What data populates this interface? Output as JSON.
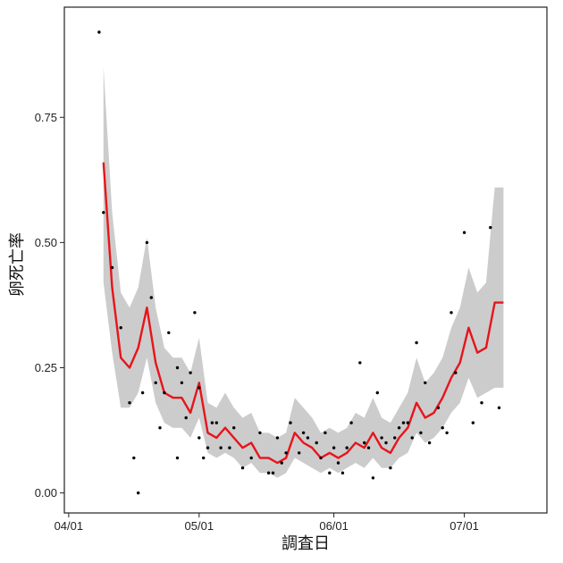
{
  "chart_data": {
    "type": "line",
    "title": "",
    "xlabel": "調査日",
    "ylabel": "卵死亡率",
    "x_axis": {
      "kind": "date",
      "ticks": [
        "2000-04-01",
        "2000-05-01",
        "2000-06-01",
        "2000-07-01"
      ],
      "tick_labels": [
        "04/01",
        "05/01",
        "06/01",
        "07/01"
      ],
      "range": [
        "2000-03-31",
        "2000-07-20"
      ]
    },
    "y_axis": {
      "ticks": [
        0.0,
        0.25,
        0.5,
        0.75
      ],
      "tick_labels": [
        "0.00",
        "0.25",
        "0.50",
        "0.75"
      ],
      "range": [
        -0.04,
        0.97
      ]
    },
    "grid": false,
    "legend": "none",
    "colors": {
      "fit_line": "#e8141b",
      "ribbon": "#cccccc",
      "points": "#000000",
      "axis": "#222222"
    },
    "series": [
      {
        "kind": "fit",
        "x": [
          "2000-04-09",
          "2000-04-11",
          "2000-04-13",
          "2000-04-15",
          "2000-04-17",
          "2000-04-19",
          "2000-04-21",
          "2000-04-23",
          "2000-04-25",
          "2000-04-27",
          "2000-04-29",
          "2000-05-01",
          "2000-05-03",
          "2000-05-05",
          "2000-05-07",
          "2000-05-09",
          "2000-05-11",
          "2000-05-13",
          "2000-05-15",
          "2000-05-17",
          "2000-05-19",
          "2000-05-21",
          "2000-05-23",
          "2000-05-25",
          "2000-05-27",
          "2000-05-29",
          "2000-05-31",
          "2000-06-02",
          "2000-06-04",
          "2000-06-06",
          "2000-06-08",
          "2000-06-10",
          "2000-06-12",
          "2000-06-14",
          "2000-06-16",
          "2000-06-18",
          "2000-06-20",
          "2000-06-22",
          "2000-06-24",
          "2000-06-26",
          "2000-06-28",
          "2000-06-30",
          "2000-07-02",
          "2000-07-04",
          "2000-07-06",
          "2000-07-08",
          "2000-07-10"
        ],
        "y": [
          0.66,
          0.41,
          0.27,
          0.25,
          0.29,
          0.37,
          0.26,
          0.2,
          0.19,
          0.19,
          0.16,
          0.22,
          0.12,
          0.11,
          0.13,
          0.11,
          0.09,
          0.1,
          0.07,
          0.07,
          0.06,
          0.07,
          0.12,
          0.1,
          0.09,
          0.07,
          0.08,
          0.07,
          0.08,
          0.1,
          0.09,
          0.12,
          0.09,
          0.08,
          0.11,
          0.13,
          0.18,
          0.15,
          0.16,
          0.19,
          0.23,
          0.26,
          0.33,
          0.28,
          0.29,
          0.38,
          0.38
        ],
        "lower": [
          0.42,
          0.28,
          0.17,
          0.17,
          0.2,
          0.27,
          0.18,
          0.14,
          0.13,
          0.13,
          0.11,
          0.15,
          0.08,
          0.07,
          0.08,
          0.07,
          0.05,
          0.06,
          0.04,
          0.04,
          0.03,
          0.04,
          0.07,
          0.06,
          0.05,
          0.04,
          0.05,
          0.04,
          0.05,
          0.06,
          0.05,
          0.07,
          0.05,
          0.05,
          0.07,
          0.08,
          0.12,
          0.1,
          0.11,
          0.13,
          0.16,
          0.18,
          0.23,
          0.19,
          0.2,
          0.21,
          0.21
        ],
        "upper": [
          0.85,
          0.56,
          0.4,
          0.37,
          0.41,
          0.51,
          0.37,
          0.29,
          0.27,
          0.27,
          0.24,
          0.31,
          0.18,
          0.17,
          0.2,
          0.17,
          0.15,
          0.16,
          0.12,
          0.12,
          0.11,
          0.12,
          0.19,
          0.17,
          0.15,
          0.12,
          0.13,
          0.12,
          0.13,
          0.16,
          0.15,
          0.19,
          0.15,
          0.14,
          0.17,
          0.2,
          0.27,
          0.22,
          0.24,
          0.27,
          0.33,
          0.37,
          0.45,
          0.4,
          0.42,
          0.61,
          0.61
        ]
      },
      {
        "kind": "observed",
        "x": [
          "2000-04-08",
          "2000-04-09",
          "2000-04-11",
          "2000-04-13",
          "2000-04-15",
          "2000-04-16",
          "2000-04-17",
          "2000-04-18",
          "2000-04-19",
          "2000-04-20",
          "2000-04-21",
          "2000-04-22",
          "2000-04-23",
          "2000-04-24",
          "2000-04-26",
          "2000-04-26",
          "2000-04-27",
          "2000-04-28",
          "2000-04-29",
          "2000-04-30",
          "2000-05-01",
          "2000-05-01",
          "2000-05-02",
          "2000-05-03",
          "2000-05-04",
          "2000-05-05",
          "2000-05-06",
          "2000-05-08",
          "2000-05-09",
          "2000-05-11",
          "2000-05-13",
          "2000-05-15",
          "2000-05-17",
          "2000-05-18",
          "2000-05-19",
          "2000-05-20",
          "2000-05-21",
          "2000-05-22",
          "2000-05-24",
          "2000-05-25",
          "2000-05-26",
          "2000-05-28",
          "2000-05-29",
          "2000-05-30",
          "2000-05-31",
          "2000-06-01",
          "2000-06-02",
          "2000-06-03",
          "2000-06-04",
          "2000-06-05",
          "2000-06-07",
          "2000-06-08",
          "2000-06-09",
          "2000-06-10",
          "2000-06-11",
          "2000-06-12",
          "2000-06-13",
          "2000-06-14",
          "2000-06-15",
          "2000-06-16",
          "2000-06-17",
          "2000-06-18",
          "2000-06-19",
          "2000-06-20",
          "2000-06-21",
          "2000-06-22",
          "2000-06-23",
          "2000-06-25",
          "2000-06-26",
          "2000-06-27",
          "2000-06-28",
          "2000-06-29",
          "2000-07-01",
          "2000-07-03",
          "2000-07-05",
          "2000-07-07",
          "2000-07-09"
        ],
        "y": [
          0.92,
          0.56,
          0.45,
          0.33,
          0.18,
          0.07,
          0.0,
          0.2,
          0.5,
          0.39,
          0.22,
          0.13,
          0.2,
          0.32,
          0.07,
          0.25,
          0.22,
          0.15,
          0.24,
          0.36,
          0.21,
          0.11,
          0.07,
          0.09,
          0.14,
          0.14,
          0.09,
          0.09,
          0.13,
          0.05,
          0.07,
          0.12,
          0.04,
          0.04,
          0.11,
          0.06,
          0.08,
          0.14,
          0.08,
          0.12,
          0.11,
          0.1,
          0.07,
          0.12,
          0.04,
          0.09,
          0.06,
          0.04,
          0.09,
          0.14,
          0.26,
          0.1,
          0.09,
          0.03,
          0.2,
          0.11,
          0.1,
          0.05,
          0.11,
          0.13,
          0.14,
          0.14,
          0.11,
          0.3,
          0.12,
          0.22,
          0.1,
          0.17,
          0.13,
          0.12,
          0.36,
          0.24,
          0.52,
          0.14,
          0.18,
          0.53,
          0.17
        ]
      }
    ]
  }
}
